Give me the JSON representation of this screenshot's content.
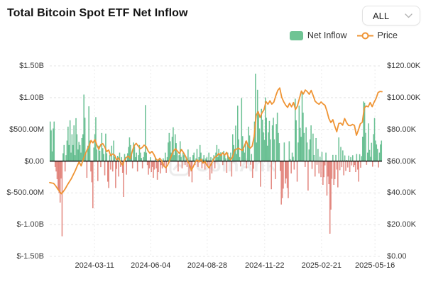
{
  "header": {
    "title": "Total Bitcoin Spot ETF Net Inflow"
  },
  "range_selector": {
    "value": "ALL"
  },
  "legend": [
    {
      "label": "Net Inflow",
      "type": "bar",
      "color": "#6fc494"
    },
    {
      "label": "Price",
      "type": "line",
      "color": "#ef9434"
    }
  ],
  "watermark": {
    "text": "CoinAnk"
  },
  "colors": {
    "bar_positive": "#7fcaa1",
    "bar_positive_edge": "#5cb98a",
    "bar_negative": "#eb9b94",
    "bar_negative_edge": "#dd7970",
    "price_line": "#ef9434",
    "grid": "#e4e4e4",
    "grid_vertical": "#ececec",
    "zero_line": "#141414",
    "axis_text": "#3a3a3a"
  },
  "chart_data": {
    "type": "bar",
    "title": "Total Bitcoin Spot ETF Net Inflow",
    "left_axis": {
      "ticks": [
        "$1.50B",
        "$1.00B",
        "$500.00M",
        "$0.00",
        "$-500.00M",
        "$-1.00B",
        "$-1.50B"
      ],
      "range_millions": [
        -1500,
        1500
      ]
    },
    "right_axis": {
      "ticks": [
        "$120.00K",
        "$100.00K",
        "$80.00K",
        "$60.00K",
        "$40.00K",
        "$20.00K",
        "$0.00"
      ],
      "range_thousands": [
        0,
        120
      ]
    },
    "x_ticks": [
      "2024-03-11",
      "2024-06-04",
      "2024-08-28",
      "2024-11-22",
      "2025-02-21",
      "2025-05-16"
    ],
    "grid": "dashed",
    "legend_position": "top-right",
    "series": [
      {
        "name": "Net Inflow",
        "type": "bar",
        "unit": "USD millions (daily net inflow)",
        "values": [
          620,
          480,
          150,
          510,
          620,
          -90,
          -160,
          -280,
          -450,
          -500,
          -650,
          -270,
          -1180,
          120,
          250,
          -160,
          90,
          320,
          540,
          250,
          640,
          130,
          420,
          250,
          560,
          90,
          673,
          420,
          180,
          300,
          250,
          130,
          360,
          420,
          1045,
          680,
          130,
          -260,
          240,
          860,
          320,
          -160,
          -330,
          -740,
          210,
          420,
          690,
          180,
          -310,
          240,
          160,
          -93,
          440,
          200,
          110,
          -220,
          430,
          120,
          -320,
          -420,
          90,
          -130,
          240,
          -160,
          320,
          60,
          -420,
          -120,
          80,
          -240,
          130,
          -90,
          60,
          -180,
          -560,
          110,
          60,
          -210,
          120,
          220,
          370,
          250,
          110,
          -110,
          290,
          230,
          60,
          130,
          -160,
          90,
          250,
          130,
          45,
          -110,
          60,
          140,
          880,
          130,
          -60,
          -210,
          -110,
          60,
          -170,
          -90,
          -260,
          -130,
          40,
          -110,
          -290,
          -170,
          30,
          -190,
          -60,
          -110,
          40,
          -90,
          130,
          -180,
          60,
          290,
          440,
          310,
          130,
          380,
          530,
          90,
          420,
          280,
          130,
          -160,
          90,
          310,
          60,
          -110,
          130,
          90,
          -60,
          40,
          -90,
          180,
          -240,
          60,
          -160,
          -330,
          90,
          130,
          -60,
          40,
          190,
          -90,
          60,
          250,
          130,
          -110,
          28,
          90,
          -130,
          40,
          64,
          -80,
          130,
          -290,
          60,
          -190,
          40,
          90,
          -110,
          130,
          250,
          60,
          190,
          110,
          135,
          90,
          -60,
          160,
          105,
          40,
          -180,
          130,
          61,
          60,
          130,
          -240,
          420,
          250,
          190,
          556,
          110,
          870,
          340,
          60,
          -80,
          990,
          390,
          190,
          130,
          310,
          -110,
          260,
          540,
          400,
          -55,
          110,
          -260,
          -116,
          620,
          1374,
          290,
          1120,
          770,
          510,
          -400,
          820,
          650,
          450,
          330,
          1000,
          680,
          240,
          450,
          630,
          340,
          -440,
          560,
          680,
          340,
          -280,
          580,
          760,
          440,
          280,
          -150,
          -680,
          -580,
          -430,
          290,
          -350,
          -270,
          -420,
          -580,
          310,
          28,
          -190,
          130,
          65,
          -130,
          980,
          640,
          -320,
          290,
          870,
          520,
          380,
          1070,
          760,
          440,
          -90,
          530,
          290,
          -460,
          180,
          340,
          560,
          -120,
          430,
          92,
          -240,
          360,
          -56,
          190,
          -190,
          66,
          -250,
          140,
          -370,
          -250,
          -64,
          130,
          -540,
          -240,
          -360,
          -1140,
          -760,
          -275,
          94,
          -370,
          -280,
          94,
          -130,
          -410,
          370,
          -140,
          220,
          -93,
          165,
          -220,
          86,
          -150,
          13,
          -97,
          84,
          -170,
          60,
          -64,
          89,
          -93,
          -60,
          -170,
          110,
          -130,
          -320,
          106,
          -100,
          76,
          381,
          936,
          917,
          442,
          -56,
          130,
          591,
          173,
          64,
          285,
          -85,
          422,
          675,
          320,
          260,
          190,
          -97,
          130,
          260,
          320
        ]
      },
      {
        "name": "Price",
        "type": "line",
        "unit": "USD thousands (BTC price)",
        "values": [
          46.5,
          46.2,
          46.0,
          44.5,
          42.5,
          41.0,
          39.5,
          41.0,
          42.8,
          45.0,
          47.0,
          49.0,
          51.5,
          54.0,
          57.0,
          59.5,
          57.0,
          61.0,
          64.0,
          67.0,
          69.5,
          73.0,
          71.5,
          73.5,
          70.0,
          67.5,
          70.5,
          71.0,
          69.0,
          66.0,
          67.0,
          63.5,
          64.5,
          63.8,
          60.8,
          62.0,
          59.5,
          57.5,
          60.5,
          62.3,
          63.2,
          61.5,
          66.2,
          69.8,
          71.2,
          69.5,
          67.8,
          68.5,
          70.1,
          69.3,
          66.5,
          64.9,
          66.1,
          64.2,
          61.5,
          60.3,
          61.8,
          60.2,
          57.0,
          55.8,
          57.5,
          60.5,
          63.8,
          66.5,
          67.8,
          66.2,
          64.8,
          67.3,
          65.5,
          63.2,
          60.5,
          58.2,
          54.2,
          56.5,
          59.3,
          60.8,
          59.5,
          61.2,
          58.8,
          59.8,
          57.2,
          55.8,
          57.8,
          60.3,
          62.5,
          63.2,
          64.8,
          63.5,
          65.2,
          63.8,
          65.5,
          62.2,
          60.8,
          62.5,
          66.8,
          67.5,
          68.2,
          67.3,
          66.8,
          69.5,
          72.7,
          69.3,
          68.2,
          69.4,
          75.6,
          88.7,
          91.2,
          87.5,
          90.5,
          92.3,
          97.5,
          95.8,
          98.0,
          95.9,
          97.2,
          101.2,
          104.5,
          106.1,
          100.2,
          97.5,
          95.3,
          93.8,
          96.5,
          94.2,
          96.9,
          92.5,
          94.7,
          99.5,
          104.1,
          102.3,
          104.8,
          103.7,
          102.1,
          104.5,
          101.3,
          97.8,
          96.6,
          95.8,
          97.3,
          96.1,
          95.2,
          91.5,
          86.8,
          84.3,
          86.1,
          82.1,
          78.5,
          83.7,
          84.0,
          82.6,
          86.8,
          84.2,
          82.5,
          82.4,
          83.1,
          82.5,
          76.3,
          79.6,
          83.5,
          84.5,
          93.5,
          94.7,
          94.2,
          96.9,
          94.3,
          97.1,
          99.5,
          103.2,
          103.9,
          103.7
        ]
      }
    ]
  }
}
